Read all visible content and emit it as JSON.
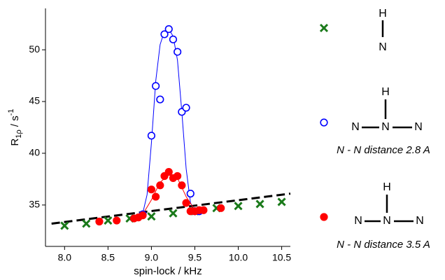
{
  "chart_data": {
    "type": "scatter",
    "x_label": "spin-lock / kHz",
    "y_label": {
      "main": "R",
      "sub": "1ρ",
      "rest": " / s",
      "sup": "-1"
    },
    "xlim": [
      7.78,
      10.6
    ],
    "ylim": [
      31,
      54
    ],
    "xticks": [
      {
        "value": 8,
        "label": "8.0"
      },
      8.5,
      {
        "value": 9,
        "label": "9.0"
      },
      9.5,
      {
        "value": 10,
        "label": "10.0"
      },
      10.5
    ],
    "yticks": [
      35,
      40,
      45,
      50
    ],
    "series": [
      {
        "color": "#000000",
        "marker": "dashed",
        "x": [
          7.85,
          10.6
        ],
        "values": [
          33.2,
          36.1
        ]
      },
      {
        "color": "#0000ff",
        "marker": "line",
        "x": [
          8.8,
          8.9,
          8.95,
          9.0,
          9.05,
          9.1,
          9.15,
          9.2,
          9.25,
          9.3,
          9.35,
          9.4,
          9.45,
          9.5,
          9.6
        ],
        "values": [
          33.9,
          34.2,
          36,
          41,
          47,
          50.5,
          51.8,
          52.0,
          51.3,
          49,
          44,
          38.5,
          35.2,
          34.4,
          34.5
        ]
      },
      {
        "color": "#ff0000",
        "marker": "line",
        "x": [
          8.8,
          8.9,
          9.0,
          9.1,
          9.2,
          9.3,
          9.4,
          9.5,
          9.6
        ],
        "values": [
          33.8,
          34.1,
          35.5,
          37.2,
          37.9,
          37.6,
          35.8,
          34.5,
          34.5
        ]
      },
      {
        "color": "#1a7a1a",
        "marker": "x",
        "x": [
          8.0,
          8.25,
          8.5,
          8.75,
          9.0,
          9.25,
          9.5,
          9.75,
          10.0,
          10.25,
          10.5
        ],
        "values": [
          33.0,
          33.2,
          33.5,
          33.7,
          33.9,
          34.2,
          34.4,
          34.7,
          34.9,
          35.1,
          35.3
        ]
      },
      {
        "name": "N - N distance 2.8 A",
        "color": "#0000ff",
        "marker": "circle-open",
        "x": [
          8.9,
          9.0,
          9.05,
          9.1,
          9.15,
          9.2,
          9.25,
          9.3,
          9.35,
          9.4,
          9.45,
          9.5,
          9.55
        ],
        "values": [
          34.1,
          41.7,
          46.5,
          45.2,
          51.5,
          52.0,
          51.0,
          49.8,
          44.0,
          44.4,
          36.1,
          34.4,
          34.4
        ]
      },
      {
        "name": "N - N distance 3.5 A",
        "color": "#ff0000",
        "marker": "circle-filled",
        "x": [
          8.4,
          8.6,
          8.8,
          8.85,
          8.9,
          9.0,
          9.05,
          9.1,
          9.15,
          9.2,
          9.25,
          9.3,
          9.35,
          9.4,
          9.45,
          9.5,
          9.55,
          9.6,
          9.8
        ],
        "values": [
          33.4,
          33.5,
          33.7,
          33.8,
          34.0,
          36.5,
          35.8,
          36.9,
          37.8,
          38.2,
          37.6,
          37.8,
          36.9,
          35.2,
          34.4,
          34.4,
          34.5,
          34.5,
          34.7
        ]
      }
    ],
    "annotations": [
      "H",
      "N",
      "H",
      "N",
      "N",
      "N",
      "H",
      "N",
      "N",
      "N"
    ]
  }
}
